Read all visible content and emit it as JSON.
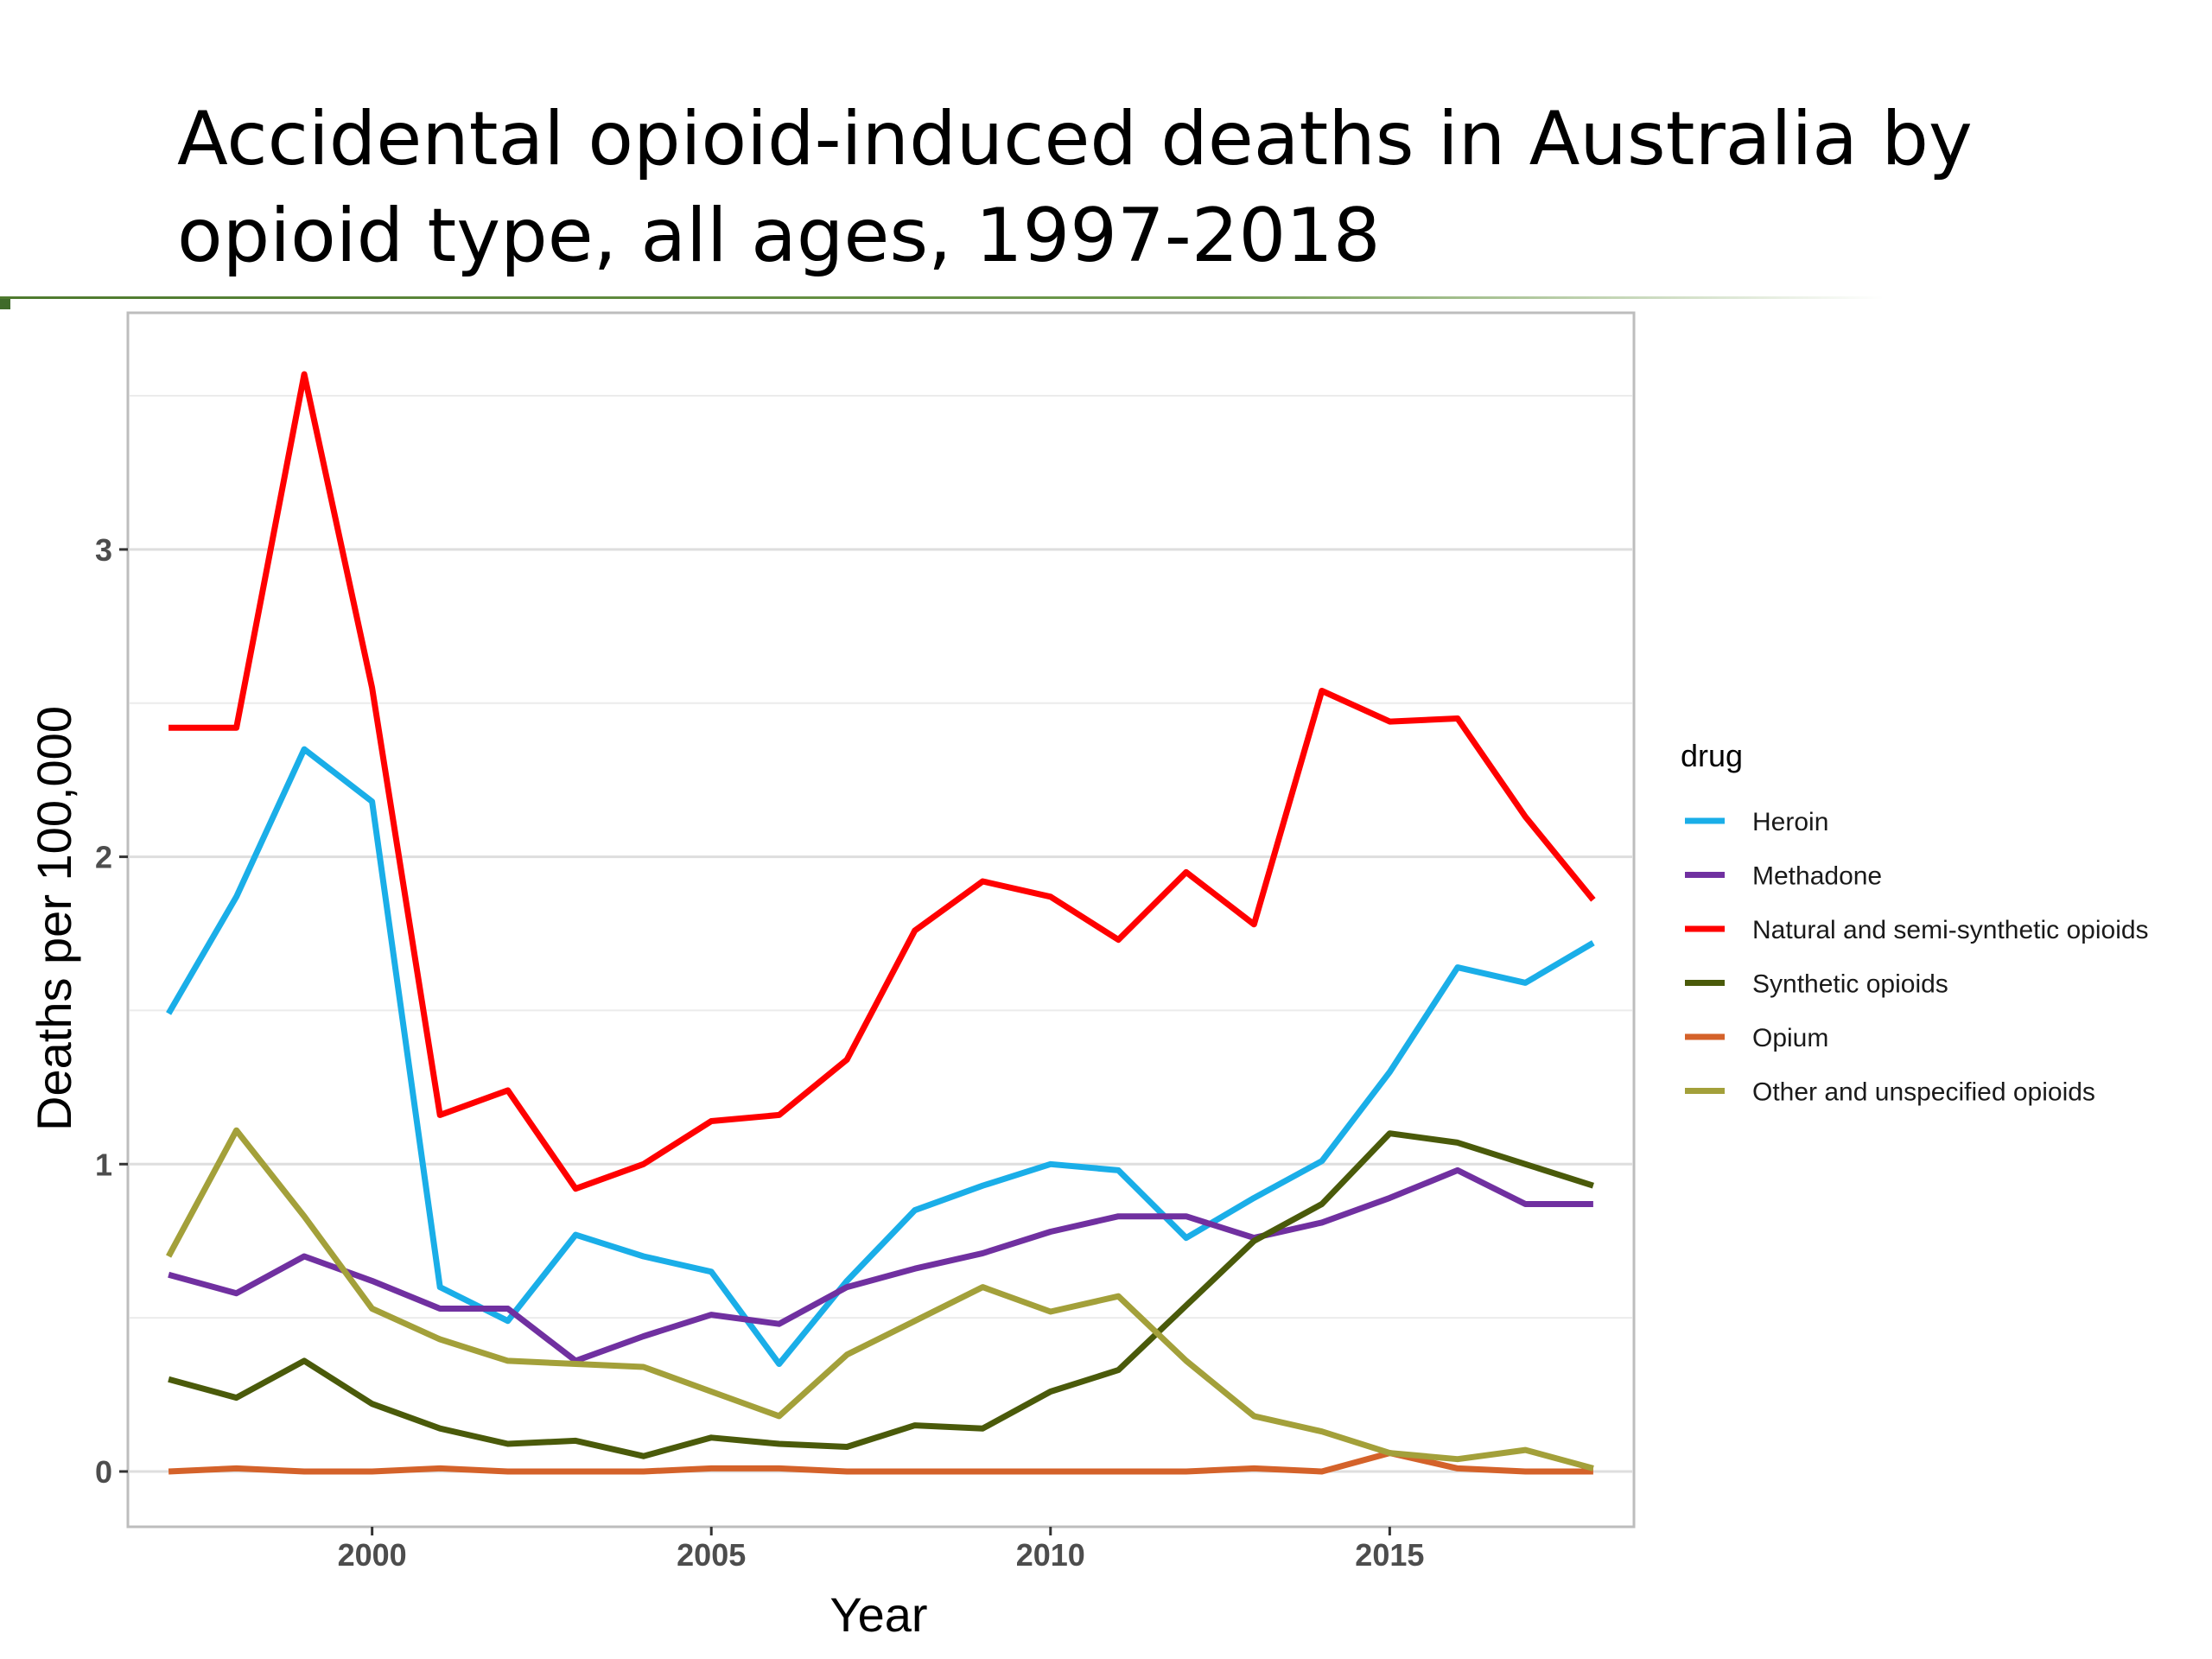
{
  "slide": {
    "title": "Accidental opioid-induced deaths in Australia by opioid type, all ages, 1997-2018"
  },
  "chart_data": {
    "type": "line",
    "title": "",
    "xlabel": "Year",
    "ylabel": "Deaths per 100,000",
    "xlim": [
      1996.4,
      2018.6
    ],
    "ylim": [
      -0.18,
      3.77
    ],
    "x_ticks": [
      2000,
      2005,
      2010,
      2015
    ],
    "y_ticks": [
      0,
      1,
      2,
      3
    ],
    "grid": true,
    "legend": {
      "title": "drug",
      "position": "right"
    },
    "x": [
      1997,
      1998,
      1999,
      2000,
      2001,
      2002,
      2003,
      2004,
      2005,
      2006,
      2007,
      2008,
      2009,
      2010,
      2011,
      2012,
      2013,
      2014,
      2015,
      2016,
      2017,
      2018
    ],
    "series": [
      {
        "name": "Heroin",
        "color": "#1aaee8",
        "values": [
          1.49,
          1.87,
          2.35,
          2.18,
          0.6,
          0.49,
          0.77,
          0.7,
          0.65,
          0.35,
          0.62,
          0.85,
          0.93,
          1.0,
          0.98,
          0.76,
          0.89,
          1.01,
          1.3,
          1.64,
          1.59,
          1.72
        ]
      },
      {
        "name": "Methadone",
        "color": "#7030a0",
        "values": [
          0.64,
          0.58,
          0.7,
          0.62,
          0.53,
          0.53,
          0.36,
          0.44,
          0.51,
          0.48,
          0.6,
          0.66,
          0.71,
          0.78,
          0.83,
          0.83,
          0.76,
          0.81,
          0.89,
          0.98,
          0.87,
          0.87
        ]
      },
      {
        "name": "Natural and semi-synthetic opioids",
        "color": "#ff0000",
        "values": [
          2.42,
          2.42,
          3.57,
          2.55,
          1.16,
          1.24,
          0.92,
          1.0,
          1.14,
          1.16,
          1.34,
          1.76,
          1.92,
          1.87,
          1.73,
          1.95,
          1.78,
          2.54,
          2.44,
          2.45,
          2.13,
          1.86
        ]
      },
      {
        "name": "Synthetic opioids",
        "color": "#4a5a0a",
        "values": [
          0.3,
          0.24,
          0.36,
          0.22,
          0.14,
          0.09,
          0.1,
          0.05,
          0.11,
          0.09,
          0.08,
          0.15,
          0.14,
          0.26,
          0.33,
          0.54,
          0.75,
          0.87,
          1.1,
          1.07,
          1.0,
          0.93
        ]
      },
      {
        "name": "Opium",
        "color": "#d4622a",
        "values": [
          0.0,
          0.01,
          0.0,
          0.0,
          0.01,
          0.0,
          0.0,
          0.0,
          0.01,
          0.01,
          0.0,
          0.0,
          0.0,
          0.0,
          0.0,
          0.0,
          0.01,
          0.0,
          0.06,
          0.01,
          0.0,
          0.0
        ]
      },
      {
        "name": "Other and unspecified opioids",
        "color": "#a3a03a",
        "values": [
          0.7,
          1.11,
          0.83,
          0.53,
          0.43,
          0.36,
          0.35,
          0.34,
          0.26,
          0.18,
          0.38,
          0.49,
          0.6,
          0.52,
          0.57,
          0.36,
          0.18,
          0.13,
          0.06,
          0.04,
          0.07,
          0.01
        ]
      }
    ]
  }
}
